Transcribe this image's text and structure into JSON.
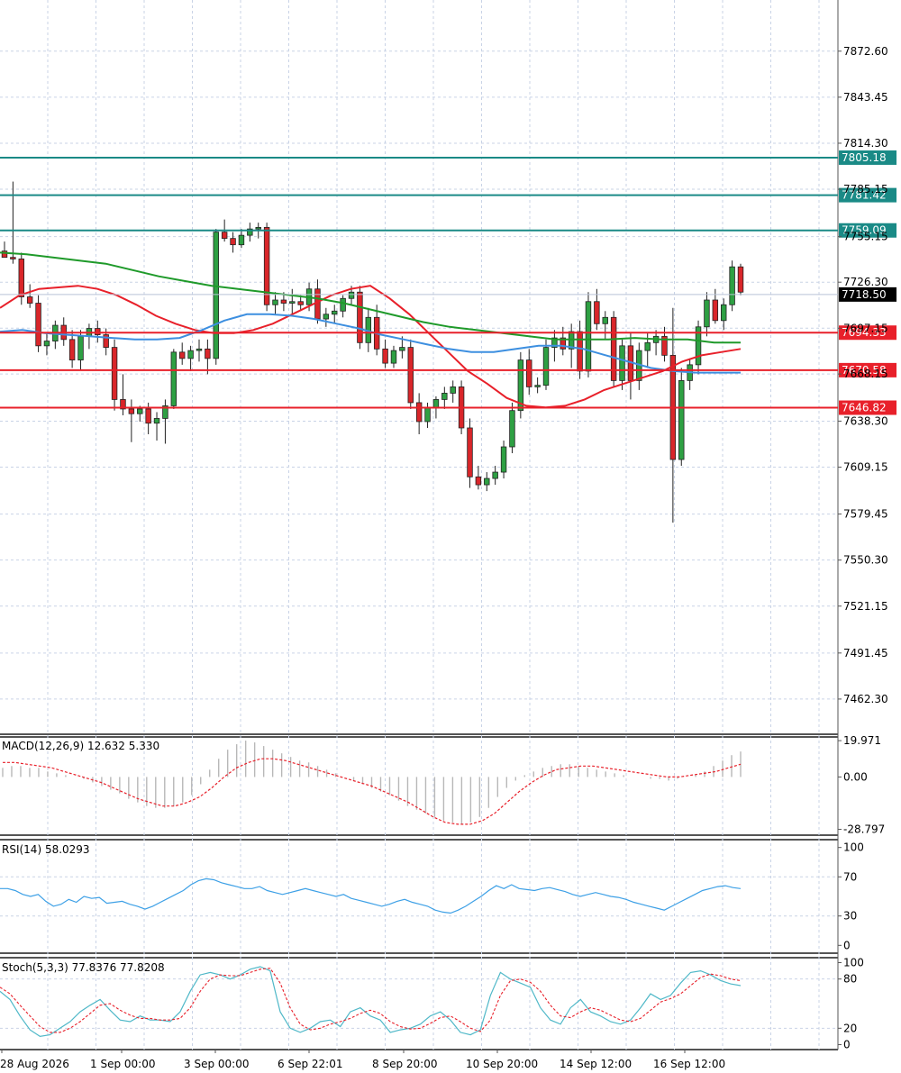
{
  "chart_data": [
    {
      "type": "candlestick",
      "panel": "price",
      "price_ticks": [
        "7872.60",
        "7843.45",
        "7814.30",
        "7785.15",
        "7755.15",
        "7726.30",
        "7697.15",
        "7668.15",
        "7638.30",
        "7609.15",
        "7579.45",
        "7550.30",
        "7521.15",
        "7491.45",
        "7462.30"
      ],
      "ylim": [
        7440,
        7905
      ],
      "current_price": {
        "value": 7718.5,
        "label": "7718.50",
        "color": "#000000"
      },
      "levels": [
        {
          "value": 7805.18,
          "label": "7805.18",
          "color": "#1a8a86"
        },
        {
          "value": 7781.42,
          "label": "7781.42",
          "color": "#1a8a86"
        },
        {
          "value": 7759.09,
          "label": "7759.09",
          "color": "#1a8a86"
        },
        {
          "value": 7694.33,
          "label": "7694.33",
          "color": "#e8202a"
        },
        {
          "value": 7670.58,
          "label": "7670.58",
          "color": "#e8202a"
        },
        {
          "value": 7646.82,
          "label": "7646.82",
          "color": "#e8202a"
        }
      ],
      "ohlc": [
        [
          7746,
          7752,
          7742,
          7742
        ],
        [
          7742,
          7790,
          7738,
          7741
        ],
        [
          7741,
          7745,
          7712,
          7717
        ],
        [
          7717,
          7725,
          7710,
          7713
        ],
        [
          7713,
          7718,
          7682,
          7686
        ],
        [
          7686,
          7694,
          7680,
          7689
        ],
        [
          7689,
          7702,
          7684,
          7699
        ],
        [
          7699,
          7704,
          7686,
          7690
        ],
        [
          7690,
          7696,
          7672,
          7677
        ],
        [
          7677,
          7696,
          7671,
          7692
        ],
        [
          7692,
          7700,
          7684,
          7697
        ],
        [
          7697,
          7702,
          7688,
          7693
        ],
        [
          7693,
          7697,
          7680,
          7685
        ],
        [
          7685,
          7690,
          7645,
          7652
        ],
        [
          7652,
          7668,
          7642,
          7646
        ],
        [
          7646,
          7652,
          7625,
          7643
        ],
        [
          7643,
          7648,
          7638,
          7646
        ],
        [
          7646,
          7650,
          7630,
          7637
        ],
        [
          7637,
          7644,
          7626,
          7640
        ],
        [
          7640,
          7652,
          7624,
          7648
        ],
        [
          7648,
          7684,
          7646,
          7682
        ],
        [
          7682,
          7688,
          7674,
          7678
        ],
        [
          7678,
          7686,
          7670,
          7683
        ],
        [
          7683,
          7690,
          7676,
          7684
        ],
        [
          7684,
          7690,
          7668,
          7678
        ],
        [
          7678,
          7760,
          7674,
          7758
        ],
        [
          7758,
          7766,
          7752,
          7754
        ],
        [
          7754,
          7758,
          7745,
          7750
        ],
        [
          7750,
          7760,
          7748,
          7756
        ],
        [
          7756,
          7764,
          7752,
          7760
        ],
        [
          7760,
          7764,
          7754,
          7761
        ],
        [
          7761,
          7764,
          7708,
          7712
        ],
        [
          7712,
          7720,
          7706,
          7715
        ],
        [
          7715,
          7720,
          7708,
          7713
        ],
        [
          7713,
          7722,
          7706,
          7714
        ],
        [
          7714,
          7718,
          7708,
          7712
        ],
        [
          7712,
          7726,
          7708,
          7722
        ],
        [
          7722,
          7728,
          7700,
          7703
        ],
        [
          7703,
          7710,
          7698,
          7706
        ],
        [
          7706,
          7712,
          7700,
          7708
        ],
        [
          7708,
          7718,
          7704,
          7716
        ],
        [
          7716,
          7724,
          7712,
          7720
        ],
        [
          7720,
          7724,
          7684,
          7688
        ],
        [
          7688,
          7710,
          7682,
          7704
        ],
        [
          7704,
          7712,
          7680,
          7684
        ],
        [
          7684,
          7690,
          7672,
          7675
        ],
        [
          7675,
          7686,
          7672,
          7683
        ],
        [
          7683,
          7692,
          7678,
          7685
        ],
        [
          7685,
          7690,
          7646,
          7650
        ],
        [
          7650,
          7656,
          7630,
          7638
        ],
        [
          7638,
          7650,
          7634,
          7647
        ],
        [
          7647,
          7654,
          7640,
          7652
        ],
        [
          7652,
          7660,
          7646,
          7656
        ],
        [
          7656,
          7664,
          7650,
          7660
        ],
        [
          7660,
          7664,
          7630,
          7634
        ],
        [
          7634,
          7640,
          7596,
          7603
        ],
        [
          7603,
          7610,
          7595,
          7598
        ],
        [
          7598,
          7606,
          7594,
          7602
        ],
        [
          7602,
          7610,
          7598,
          7606
        ],
        [
          7606,
          7626,
          7602,
          7622
        ],
        [
          7622,
          7650,
          7618,
          7645
        ],
        [
          7645,
          7682,
          7640,
          7677
        ],
        [
          7677,
          7684,
          7655,
          7660
        ],
        [
          7660,
          7666,
          7656,
          7661
        ],
        [
          7661,
          7690,
          7658,
          7685
        ],
        [
          7685,
          7696,
          7676,
          7691
        ],
        [
          7691,
          7698,
          7680,
          7684
        ],
        [
          7684,
          7700,
          7672,
          7695
        ],
        [
          7695,
          7702,
          7665,
          7670
        ],
        [
          7670,
          7720,
          7666,
          7714
        ],
        [
          7714,
          7722,
          7696,
          7700
        ],
        [
          7700,
          7708,
          7690,
          7704
        ],
        [
          7704,
          7708,
          7660,
          7664
        ],
        [
          7664,
          7690,
          7658,
          7686
        ],
        [
          7686,
          7694,
          7652,
          7664
        ],
        [
          7664,
          7688,
          7658,
          7683
        ],
        [
          7683,
          7694,
          7672,
          7688
        ],
        [
          7688,
          7696,
          7680,
          7692
        ],
        [
          7692,
          7698,
          7676,
          7680
        ],
        [
          7680,
          7710,
          7574,
          7614
        ],
        [
          7614,
          7672,
          7610,
          7664
        ],
        [
          7664,
          7678,
          7658,
          7674
        ],
        [
          7674,
          7702,
          7668,
          7698
        ],
        [
          7698,
          7720,
          7692,
          7715
        ],
        [
          7715,
          7722,
          7700,
          7702
        ],
        [
          7702,
          7716,
          7696,
          7712
        ],
        [
          7712,
          7740,
          7708,
          7736
        ],
        [
          7736,
          7738,
          7718,
          7720
        ]
      ],
      "series": [
        {
          "name": "",
          "color": "#e8202a",
          "values": [
            7710,
            7718,
            7722,
            7723,
            7724,
            7722,
            7718,
            7712,
            7705,
            7700,
            7696,
            7694,
            7694,
            7696,
            7700,
            7706,
            7712,
            7718,
            7722,
            7724,
            7716,
            7706,
            7694,
            7682,
            7670,
            7662,
            7653,
            7648,
            7647,
            7648,
            7652,
            7658,
            7662,
            7666,
            7670,
            7676,
            7680,
            7682,
            7684
          ]
        },
        {
          "name": "",
          "color": "#3d8fe0",
          "values": [
            7695,
            7696,
            7694,
            7693,
            7692,
            7691,
            7690,
            7690,
            7691,
            7696,
            7702,
            7706,
            7706,
            7705,
            7703,
            7700,
            7697,
            7693,
            7690,
            7687,
            7684,
            7682,
            7682,
            7684,
            7686,
            7686,
            7684,
            7680,
            7676,
            7672,
            7670,
            7669,
            7669,
            7669
          ]
        },
        {
          "name": "",
          "color": "#1f9a2a",
          "values": [
            7745,
            7744,
            7742,
            7740,
            7738,
            7734,
            7730,
            7727,
            7724,
            7722,
            7720,
            7718,
            7716,
            7713,
            7709,
            7705,
            7701,
            7698,
            7696,
            7694,
            7692,
            7690,
            7690,
            7690,
            7691,
            7690,
            7690,
            7688,
            7688
          ]
        }
      ],
      "x_tick_labels": [
        "28 Aug 2026",
        "1 Sep 00:00",
        "3 Sep 00:00",
        "6 Sep 22:01",
        "8 Sep 20:00",
        "10 Sep 20:00",
        "14 Sep 12:00",
        "16 Sep 12:00"
      ]
    },
    {
      "type": "bar",
      "panel": "macd",
      "title": "MACD(12,26,9) 12.632 5.330",
      "y_ticks": [
        "19.971",
        "0.00",
        "-28.797"
      ],
      "ylim": [
        -32,
        22
      ],
      "histogram": [
        5,
        6,
        6,
        5,
        5,
        3,
        2,
        1,
        0,
        -1,
        -3,
        -5,
        -7,
        -9,
        -12,
        -14,
        -16,
        -17,
        -17,
        -16,
        -14,
        -10,
        -4,
        4,
        10,
        15,
        18,
        20,
        19,
        17,
        15,
        13,
        11,
        9,
        8,
        6,
        4,
        2,
        0,
        -2,
        -4,
        -6,
        -8,
        -10,
        -13,
        -16,
        -18,
        -20,
        -22,
        -24,
        -25,
        -26,
        -25,
        -22,
        -17,
        -11,
        -6,
        -2,
        1,
        3,
        5,
        6,
        7,
        7,
        6,
        5,
        4,
        3,
        2,
        1,
        0,
        0,
        -1,
        -1,
        -2,
        -1,
        0,
        1,
        3,
        6,
        9,
        12,
        14
      ],
      "signal": [
        8,
        8,
        7,
        6,
        5,
        3,
        1,
        -1,
        -3,
        -6,
        -9,
        -12,
        -14,
        -16,
        -16,
        -14,
        -11,
        -6,
        0,
        5,
        8,
        10,
        10,
        9,
        7,
        5,
        3,
        1,
        -1,
        -3,
        -5,
        -8,
        -11,
        -14,
        -18,
        -22,
        -25,
        -26,
        -26,
        -24,
        -20,
        -14,
        -8,
        -3,
        1,
        4,
        5,
        6,
        6,
        5,
        4,
        3,
        2,
        1,
        0,
        0,
        1,
        2,
        3,
        5,
        7
      ]
    },
    {
      "type": "line",
      "panel": "rsi",
      "title": "RSI(14) 58.0293",
      "y_ticks": [
        "100",
        "70",
        "30",
        "0"
      ],
      "ylim": [
        -8,
        108
      ],
      "values": [
        58,
        58,
        56,
        52,
        50,
        52,
        45,
        40,
        42,
        47,
        44,
        50,
        48,
        49,
        43,
        44,
        45,
        42,
        40,
        37,
        40,
        44,
        48,
        52,
        56,
        62,
        66,
        68,
        67,
        64,
        62,
        60,
        58,
        58,
        60,
        56,
        54,
        52,
        54,
        56,
        58,
        56,
        54,
        52,
        50,
        52,
        48,
        46,
        44,
        42,
        40,
        42,
        45,
        47,
        44,
        42,
        40,
        36,
        34,
        33,
        36,
        40,
        45,
        50,
        56,
        61,
        58,
        62,
        58,
        57,
        56,
        58,
        59,
        57,
        55,
        52,
        50,
        52,
        54,
        52,
        50,
        49,
        47,
        44,
        42,
        40,
        38,
        36,
        40,
        44,
        48,
        52,
        56,
        58,
        60,
        61,
        59,
        58
      ]
    },
    {
      "type": "line",
      "panel": "stoch",
      "title": "Stoch(5,3,3) 77.8376 77.8208",
      "y_ticks": [
        "100",
        "80",
        "20",
        "0"
      ],
      "ylim": [
        -6,
        106
      ],
      "main": [
        65,
        55,
        35,
        18,
        10,
        12,
        20,
        28,
        40,
        48,
        55,
        42,
        30,
        28,
        35,
        30,
        30,
        28,
        40,
        65,
        85,
        88,
        85,
        80,
        85,
        92,
        95,
        90,
        40,
        20,
        15,
        20,
        28,
        30,
        22,
        40,
        45,
        35,
        30,
        15,
        18,
        20,
        25,
        35,
        40,
        30,
        15,
        12,
        18,
        60,
        88,
        80,
        75,
        70,
        45,
        30,
        25,
        45,
        55,
        40,
        35,
        28,
        25,
        30,
        45,
        62,
        55,
        60,
        75,
        88,
        90,
        85,
        78,
        74,
        72
      ],
      "signal": [
        70,
        62,
        48,
        35,
        22,
        15,
        15,
        20,
        28,
        38,
        48,
        50,
        42,
        36,
        32,
        32,
        30,
        30,
        32,
        45,
        65,
        80,
        85,
        84,
        84,
        88,
        92,
        93,
        75,
        45,
        25,
        18,
        20,
        25,
        28,
        32,
        38,
        42,
        38,
        28,
        22,
        19,
        20,
        26,
        33,
        35,
        28,
        20,
        16,
        30,
        60,
        78,
        80,
        76,
        65,
        48,
        35,
        33,
        40,
        45,
        42,
        36,
        30,
        28,
        32,
        42,
        52,
        56,
        62,
        72,
        82,
        86,
        84,
        80,
        78
      ]
    }
  ]
}
